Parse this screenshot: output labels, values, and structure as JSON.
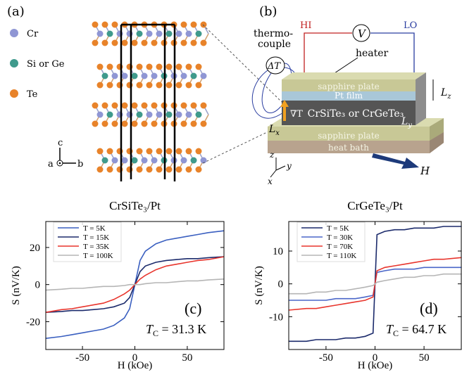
{
  "figure": {
    "panel_a": {
      "label": "(a)",
      "legend": [
        "Cr",
        "Si or Ge",
        "Te"
      ],
      "axes": [
        "c",
        "a",
        "b"
      ]
    },
    "panel_b": {
      "label": "(b)",
      "hi": "HI",
      "lo": "LO",
      "voltmeter": "V",
      "thermocouple": [
        "thermo-",
        "couple"
      ],
      "delta_t": "ΔT",
      "heater": "heater",
      "top_plate": "sapphire plate",
      "film": "Pt film",
      "sample": "CrSiTe₃ or CrGeTe₃",
      "gradient": "∇T",
      "lz": {
        "text": "L",
        "sub": "z"
      },
      "lx": {
        "text": "L",
        "sub": "x"
      },
      "ly": {
        "text": "L",
        "sub": "y"
      },
      "bottom_plate": "sapphire plate",
      "bath": "heat bath",
      "field": "H",
      "axes": [
        "z",
        "y",
        "x"
      ]
    }
  },
  "chart_data": [
    {
      "type": "line",
      "title": "CrSiTe₃/Pt",
      "panel_label": "(c)",
      "x_label": "H (kOe)",
      "y_label": "S (nV/K)",
      "annotation": {
        "text": "T",
        "sub": "C",
        "rest": " = 31.3 K"
      },
      "x": [
        -85,
        -70,
        -60,
        -50,
        -40,
        -30,
        -20,
        -10,
        -5,
        0,
        5,
        10,
        20,
        30,
        40,
        50,
        60,
        70,
        85
      ],
      "series": [
        {
          "name": "T = 5K",
          "color": "#3a5fc0",
          "values": [
            -29,
            -28,
            -27,
            -26,
            -25,
            -24,
            -22,
            -18,
            -13,
            0,
            13,
            18,
            22,
            24,
            25,
            26,
            27,
            28,
            29
          ]
        },
        {
          "name": "T = 15K",
          "color": "#1b2a6b",
          "values": [
            -15,
            -14.5,
            -14,
            -14,
            -13.5,
            -13,
            -12,
            -10,
            -7,
            0,
            7,
            10,
            12,
            13,
            13.5,
            14,
            14,
            14.5,
            15
          ]
        },
        {
          "name": "T = 35K",
          "color": "#e8352d",
          "values": [
            -15,
            -13.5,
            -13,
            -12,
            -11,
            -10,
            -8,
            -5,
            -3,
            0,
            3,
            5,
            8,
            10,
            11,
            12,
            13,
            13.5,
            15
          ]
        },
        {
          "name": "T = 100K",
          "color": "#b5b5b5",
          "values": [
            -3,
            -2.5,
            -2,
            -2,
            -1.5,
            -1,
            -1,
            -0.5,
            0,
            0,
            0,
            0.5,
            1,
            1,
            1.5,
            2,
            2,
            2.5,
            3
          ]
        }
      ],
      "xlim": [
        -85,
        85
      ],
      "ylim": [
        -35,
        34
      ],
      "xticks": [
        -50,
        0,
        50
      ],
      "yticks": [
        -20,
        0,
        20
      ],
      "legend": "upper left"
    },
    {
      "type": "line",
      "title": "CrGeTe₃/Pt",
      "panel_label": "(d)",
      "x_label": "H (kOe)",
      "y_label": "S (nV/K)",
      "annotation": {
        "text": "T",
        "sub": "C",
        "rest": " = 64.7 K"
      },
      "x": [
        -88,
        -70,
        -60,
        -50,
        -40,
        -30,
        -20,
        -10,
        -2,
        0,
        2,
        10,
        20,
        30,
        40,
        50,
        60,
        70,
        88
      ],
      "series": [
        {
          "name": "T = 5K",
          "color": "#1b2a6b",
          "values": [
            -17.5,
            -17.5,
            -17,
            -17,
            -17,
            -16.5,
            -16.5,
            -16,
            -15,
            0,
            15,
            16,
            16.5,
            16.5,
            17,
            17,
            17,
            17.5,
            17.5
          ]
        },
        {
          "name": "T = 30K",
          "color": "#4a66c8",
          "values": [
            -5,
            -5,
            -5,
            -5,
            -4.5,
            -4.5,
            -4.5,
            -4,
            -3.5,
            0,
            3.5,
            4,
            4.5,
            4.5,
            4.5,
            5,
            5,
            5,
            5
          ]
        },
        {
          "name": "T = 70K",
          "color": "#e8352d",
          "values": [
            -8,
            -7.5,
            -7.5,
            -7,
            -6.5,
            -6,
            -5.5,
            -5,
            -4,
            0,
            4,
            5,
            5.5,
            6,
            6.5,
            7,
            7.5,
            7.5,
            8
          ]
        },
        {
          "name": "T = 110K",
          "color": "#b5b5b5",
          "values": [
            -3,
            -3,
            -2.5,
            -2.5,
            -2,
            -2,
            -1.5,
            -1,
            -0.5,
            0,
            0.5,
            1,
            1.5,
            2,
            2,
            2.5,
            2.5,
            3,
            3
          ]
        }
      ],
      "xlim": [
        -88,
        88
      ],
      "ylim": [
        -20,
        19
      ],
      "xticks": [
        -50,
        0,
        50
      ],
      "yticks": [
        -10,
        0,
        10
      ],
      "legend": "upper left"
    }
  ]
}
